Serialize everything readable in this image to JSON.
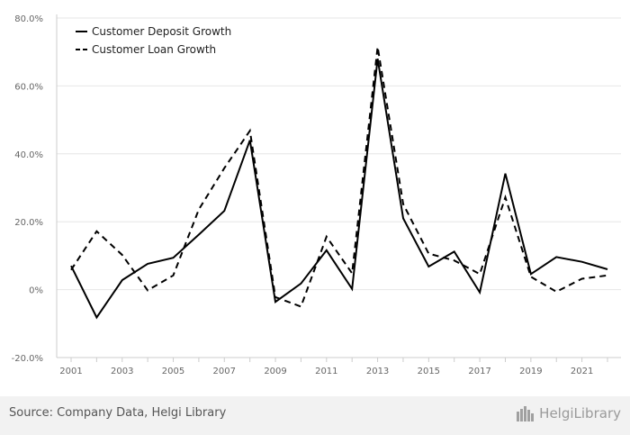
{
  "chart_data": {
    "type": "line",
    "title": "",
    "xlabel": "",
    "ylabel": "",
    "x": [
      2001,
      2002,
      2003,
      2004,
      2005,
      2006,
      2007,
      2008,
      2009,
      2010,
      2011,
      2012,
      2013,
      2014,
      2015,
      2016,
      2017,
      2018,
      2019,
      2020,
      2021,
      2022
    ],
    "x_tick_labels": [
      "2001",
      "2003",
      "2005",
      "2007",
      "2009",
      "2011",
      "2013",
      "2015",
      "2017",
      "2019",
      "2021"
    ],
    "ylim": [
      -20,
      80
    ],
    "y_ticks": [
      -20,
      0,
      20,
      40,
      60,
      80
    ],
    "y_tick_labels": [
      "-20.0%",
      "0%",
      "20.0%",
      "40.0%",
      "60.0%",
      "80.0%"
    ],
    "grid": "horizontal",
    "legend_position": "top-left",
    "series": [
      {
        "name": "Customer Deposit Growth",
        "style": "solid",
        "color": "#000000",
        "values": [
          7.0,
          -8.2,
          2.8,
          7.6,
          9.4,
          16.2,
          23.2,
          44.0,
          -3.6,
          1.8,
          11.6,
          0.2,
          68.0,
          21.0,
          6.8,
          11.2,
          -0.8,
          34.2,
          4.6,
          9.6,
          8.2,
          6.0
        ]
      },
      {
        "name": "Customer Loan Growth",
        "style": "dashed",
        "color": "#000000",
        "values": [
          5.8,
          17.2,
          10.2,
          -0.2,
          4.2,
          23.6,
          35.8,
          46.8,
          -2.2,
          -5.0,
          15.6,
          4.8,
          71.5,
          25.2,
          10.6,
          8.6,
          4.6,
          27.2,
          3.8,
          -0.6,
          3.2,
          4.2
        ]
      }
    ]
  },
  "footer": {
    "source": "Source: Company Data, Helgi Library",
    "brand": "HelgiLibrary"
  },
  "colors": {
    "grid": "#e6e6e6",
    "axis": "#cccccc",
    "tick_text": "#666666",
    "footer_bg": "#f2f2f2"
  }
}
